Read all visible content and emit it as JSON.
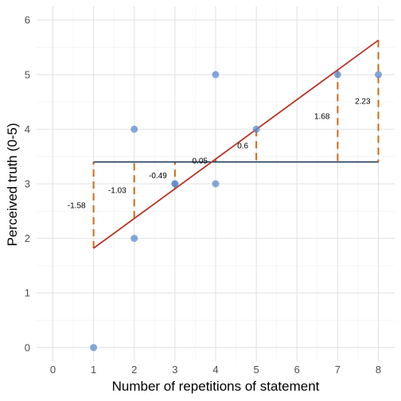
{
  "chart_data": {
    "type": "scatter",
    "title": "",
    "xlabel": "Number of repetitions of statement",
    "ylabel": "Perceived truth (0-5)",
    "xlim": [
      -0.4,
      8.4
    ],
    "ylim": [
      -0.25,
      6.25
    ],
    "x_ticks": [
      "0",
      "1",
      "2",
      "3",
      "4",
      "5",
      "6",
      "7",
      "8"
    ],
    "y_ticks": [
      "0",
      "1",
      "2",
      "3",
      "4",
      "5",
      "6"
    ],
    "grid": true,
    "legend": "none",
    "points": [
      {
        "x": 1,
        "y": 0
      },
      {
        "x": 2,
        "y": 4
      },
      {
        "x": 2,
        "y": 2
      },
      {
        "x": 3,
        "y": 3
      },
      {
        "x": 3,
        "y": 3
      },
      {
        "x": 4,
        "y": 5
      },
      {
        "x": 4,
        "y": 3
      },
      {
        "x": 5,
        "y": 4
      },
      {
        "x": 7,
        "y": 5
      },
      {
        "x": 8,
        "y": 5
      }
    ],
    "mean_line": {
      "y": 3.4,
      "x_from": 1,
      "x_to": 8
    },
    "regression_line": {
      "x_from": 1,
      "y_from": 1.82,
      "x_to": 8,
      "y_to": 5.63
    },
    "deviations": [
      {
        "x": 1,
        "from": 1.82,
        "to": 3.4,
        "label": "-1.58"
      },
      {
        "x": 2,
        "from": 2.37,
        "to": 3.4,
        "label": "-1.03"
      },
      {
        "x": 3,
        "from": 2.91,
        "to": 3.4,
        "label": "-0.49"
      },
      {
        "x": 4,
        "from": 3.45,
        "to": 3.4,
        "label": "0.05"
      },
      {
        "x": 5,
        "from": 4.0,
        "to": 3.4,
        "label": "0.6"
      },
      {
        "x": 7,
        "from": 5.08,
        "to": 3.4,
        "label": "1.68"
      },
      {
        "x": 8,
        "from": 5.63,
        "to": 3.4,
        "label": "2.23"
      }
    ],
    "colors": {
      "points": "#5b8ccf",
      "mean_line": "#1f3a57",
      "regression_line": "#b8342a",
      "deviation": "#cc6a1a",
      "grid_major": "#e3e3e3",
      "grid_minor": "#f0f0f0"
    }
  }
}
